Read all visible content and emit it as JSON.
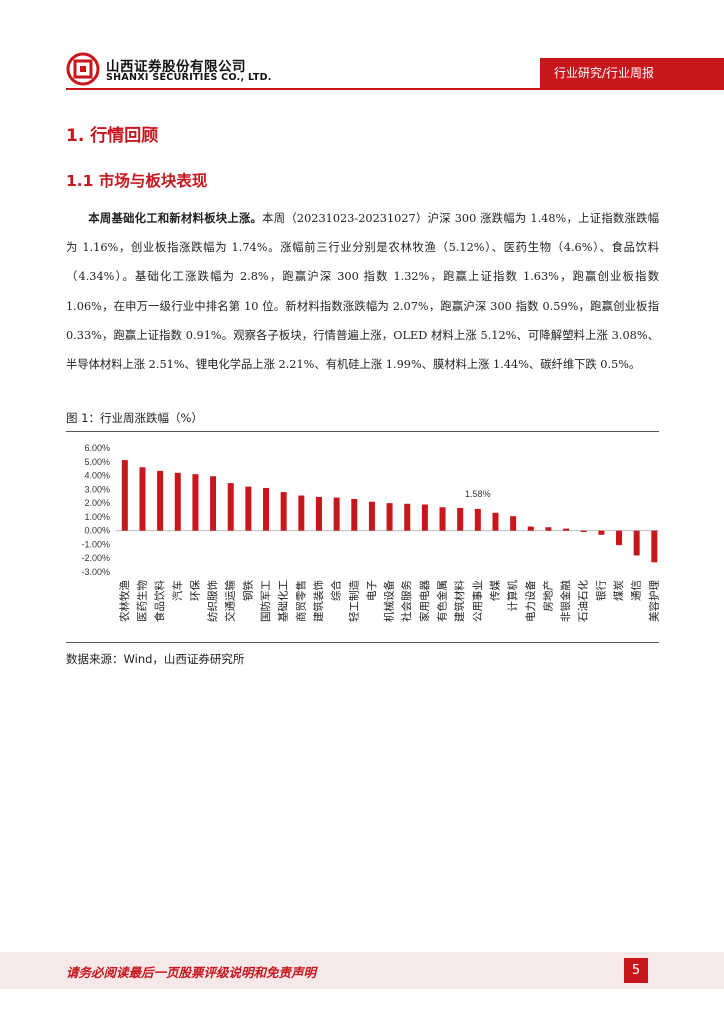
{
  "header": {
    "company_cn": "山西证券股份有限公司",
    "company_en": "SHANXI SECURITIES CO., LTD.",
    "tag": "行业研究/行业周报"
  },
  "section": {
    "h1": "1. 行情回顾",
    "h2": "1.1  市场与板块表现"
  },
  "paragraph": {
    "lead": "本周基础化工和新材料板块上涨。",
    "body": "本周（20231023-20231027）沪深 300 涨跌幅为 1.48%，上证指数涨跌幅为 1.16%，创业板指涨跌幅为 1.74%。涨幅前三行业分别是农林牧渔（5.12%）、医药生物（4.6%）、食品饮料（4.34%）。基础化工涨跌幅为 2.8%，跑赢沪深 300 指数 1.32%，跑赢上证指数 1.63%，跑赢创业板指数 1.06%，在申万一级行业中排名第 10 位。新材料指数涨跌幅为 2.07%，跑赢沪深 300 指数 0.59%，跑赢创业板指 0.33%，跑赢上证指数 0.91%。观察各子板块，行情普遍上涨，OLED 材料上涨 5.12%、可降解塑料上涨 3.08%、半导体材料上涨 2.51%、锂电化学品上涨 2.21%、有机硅上涨 1.99%、膜材料上涨 1.44%、碳纤维下跌 0.5%。"
  },
  "figure": {
    "title": "图 1：行业周涨跌幅（%）",
    "source": "数据来源：Wind，山西证券研究所"
  },
  "chart_data": {
    "type": "bar",
    "categories": [
      "农林牧渔",
      "医药生物",
      "食品饮料",
      "汽车",
      "环保",
      "纺织服饰",
      "交通运输",
      "钢铁",
      "国防军工",
      "基础化工",
      "商贸零售",
      "建筑装饰",
      "综合",
      "轻工制造",
      "电子",
      "机械设备",
      "社会服务",
      "家用电器",
      "有色金属",
      "建筑材料",
      "公用事业",
      "传媒",
      "计算机",
      "电力设备",
      "房地产",
      "非银金融",
      "石油石化",
      "银行",
      "煤炭",
      "通信",
      "美容护理"
    ],
    "values": [
      5.12,
      4.6,
      4.34,
      4.2,
      4.1,
      3.95,
      3.45,
      3.2,
      3.1,
      2.8,
      2.55,
      2.45,
      2.4,
      2.3,
      2.1,
      2.0,
      1.95,
      1.9,
      1.7,
      1.65,
      1.58,
      1.3,
      1.05,
      0.3,
      0.25,
      0.15,
      -0.1,
      -0.3,
      -1.05,
      -1.8,
      -2.3
    ],
    "annotation": {
      "label": "1.58%",
      "category": "公用事业"
    },
    "ytick_labels": [
      "6.00%",
      "5.00%",
      "4.00%",
      "3.00%",
      "2.00%",
      "1.00%",
      "0.00%",
      "-1.00%",
      "-2.00%",
      "-3.00%"
    ],
    "ylim": [
      -3,
      6
    ],
    "title": "",
    "xlabel": "",
    "ylabel": "",
    "bar_color": "#c8161d",
    "grid": false
  },
  "footer": {
    "disclaimer": "请务必阅读最后一页股票评级说明和免责声明",
    "page": "5"
  },
  "colors": {
    "brand_red": "#c8161d",
    "footer_bg": "#f7e9ea"
  }
}
